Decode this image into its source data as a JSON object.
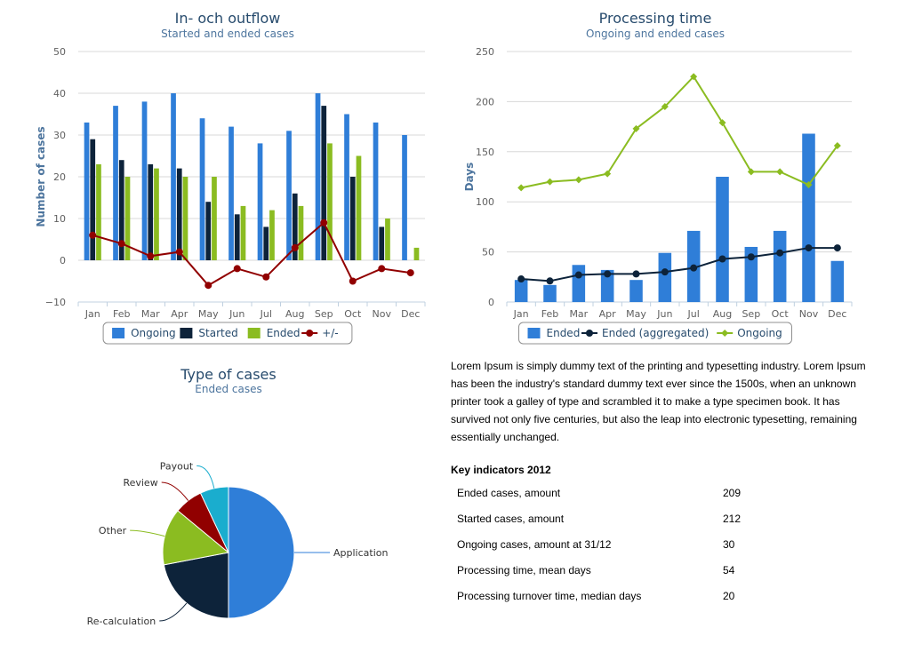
{
  "chart_data": [
    {
      "id": "inflow",
      "type": "bar",
      "title": "In- och outflow",
      "subtitle": "Started and ended cases",
      "ylabel": "Number of cases",
      "xlabel": "",
      "ylim": [
        -10,
        50
      ],
      "yticks": [
        -10,
        0,
        10,
        20,
        30,
        40,
        50
      ],
      "grid": true,
      "legend_position": "bottom-center",
      "categories": [
        "Jan",
        "Feb",
        "Mar",
        "Apr",
        "May",
        "Jun",
        "Jul",
        "Aug",
        "Sep",
        "Oct",
        "Nov",
        "Dec"
      ],
      "series": [
        {
          "name": "Ongoing",
          "type": "bar",
          "color": "#2f7ed8",
          "values": [
            33,
            37,
            38,
            40,
            34,
            32,
            28,
            31,
            40,
            35,
            33,
            30
          ]
        },
        {
          "name": "Started",
          "type": "bar",
          "color": "#0d233a",
          "values": [
            29,
            24,
            23,
            22,
            14,
            11,
            8,
            16,
            37,
            20,
            8,
            0
          ]
        },
        {
          "name": "Ended",
          "type": "bar",
          "color": "#8bbc21",
          "values": [
            23,
            20,
            22,
            20,
            20,
            13,
            12,
            13,
            28,
            25,
            10,
            3
          ]
        },
        {
          "name": "+/-",
          "type": "line",
          "color": "#910000",
          "values": [
            6,
            4,
            1,
            2,
            -6,
            -2,
            -4,
            3,
            9,
            -5,
            -2,
            -3
          ]
        }
      ]
    },
    {
      "id": "processing",
      "type": "bar",
      "title": "Processing time",
      "subtitle": "Ongoing and ended cases",
      "ylabel": "Days",
      "xlabel": "",
      "ylim": [
        0,
        250
      ],
      "yticks": [
        0,
        50,
        100,
        150,
        200,
        250
      ],
      "grid": true,
      "legend_position": "bottom-center",
      "categories": [
        "Jan",
        "Feb",
        "Mar",
        "Apr",
        "May",
        "Jun",
        "Jul",
        "Aug",
        "Sep",
        "Oct",
        "Nov",
        "Dec"
      ],
      "series": [
        {
          "name": "Ended",
          "type": "bar",
          "color": "#2f7ed8",
          "values": [
            22,
            17,
            37,
            32,
            22,
            49,
            71,
            125,
            55,
            71,
            168,
            41
          ]
        },
        {
          "name": "Ended (aggregated)",
          "type": "line",
          "marker": "circle",
          "color": "#0d233a",
          "values": [
            23,
            21,
            27,
            28,
            28,
            30,
            34,
            43,
            45,
            49,
            54,
            54
          ]
        },
        {
          "name": "Ongoing",
          "type": "line",
          "marker": "diamond",
          "color": "#8bbc21",
          "values": [
            114,
            120,
            122,
            128,
            173,
            195,
            225,
            179,
            130,
            130,
            117,
            156
          ]
        }
      ]
    },
    {
      "id": "types",
      "type": "pie",
      "title": "Type of cases",
      "subtitle": "Ended cases",
      "slices": [
        {
          "name": "Application",
          "value": 50,
          "color": "#2f7ed8"
        },
        {
          "name": "Re-calculation",
          "value": 22,
          "color": "#0d233a"
        },
        {
          "name": "Other",
          "value": 14,
          "color": "#8bbc21"
        },
        {
          "name": "Review",
          "value": 7,
          "color": "#910000"
        },
        {
          "name": "Payout",
          "value": 7,
          "color": "#1aadce"
        }
      ]
    }
  ],
  "text_panel": {
    "paragraph": "Lorem Ipsum is simply dummy text of the printing and typesetting industry. Lorem Ipsum has been the industry's standard dummy text ever since the 1500s, when an unknown printer took a galley of type and scrambled it to make a type specimen book. It has survived not only five centuries, but also the leap into electronic typesetting, remaining essentially unchanged.",
    "kpi_heading": "Key indicators 2012",
    "kpis": [
      {
        "label": "Ended cases, amount",
        "value": "209"
      },
      {
        "label": "Started cases, amount",
        "value": "212"
      },
      {
        "label": "Ongoing cases, amount at 31/12",
        "value": "30"
      },
      {
        "label": "Processing time, mean days",
        "value": "54"
      },
      {
        "label": "Processing turnover time, median days",
        "value": "20"
      }
    ]
  }
}
